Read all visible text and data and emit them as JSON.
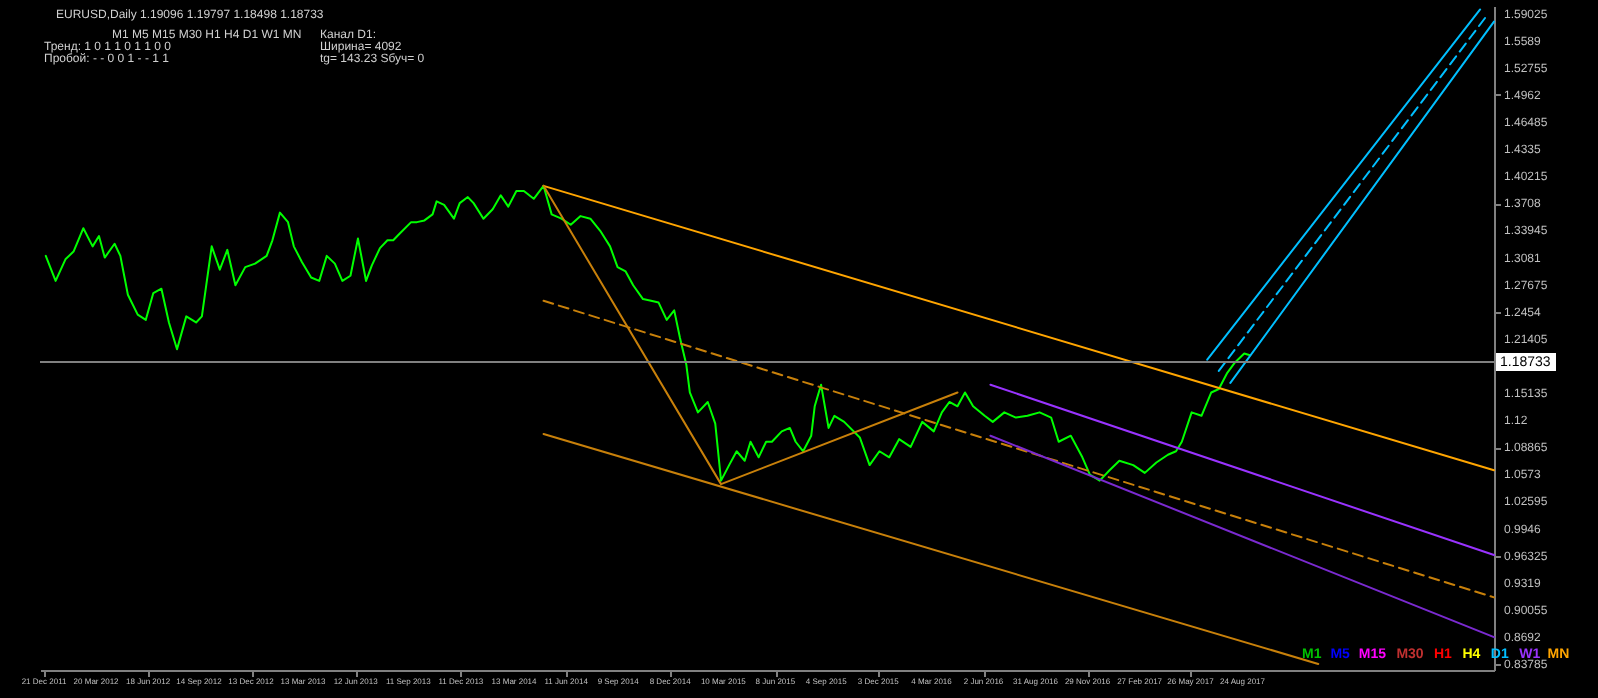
{
  "chart_data": {
    "type": "line",
    "title": "EURUSD,Daily  1.19096 1.19797 1.18498 1.18733",
    "annotations": [
      "M1 M5 M15 M30 H1 H4 D1 W1 MN",
      "Тренд:  1  0  1  1  0  1  1  0  0",
      "Пробой:  -  -  0  0  1  -  -  1  1",
      "Канал D1:",
      "Ширина= 4092",
      "tg= 143.23  Sбуч= 0",
      "M1 M5 M15 M30 H1 H4 D1 W1 MN"
    ],
    "xlim": [
      "2011-12-14",
      "2018-11-02"
    ],
    "ylim": [
      0.831,
      1.599
    ],
    "xticks": [
      {
        "value": "2011-12-21",
        "label": "21 Dec 2011"
      },
      {
        "value": "2012-03-20",
        "label": "20 Mar 2012"
      },
      {
        "value": "2012-06-18",
        "label": "18 Jun 2012"
      },
      {
        "value": "2012-09-14",
        "label": "14 Sep 2012"
      },
      {
        "value": "2012-12-13",
        "label": "13 Dec 2012"
      },
      {
        "value": "2013-03-13",
        "label": "13 Mar 2013"
      },
      {
        "value": "2013-06-12",
        "label": "12 Jun 2013"
      },
      {
        "value": "2013-09-11",
        "label": "11 Sep 2013"
      },
      {
        "value": "2013-12-11",
        "label": "11 Dec 2013"
      },
      {
        "value": "2014-03-13",
        "label": "13 Mar 2014"
      },
      {
        "value": "2014-06-11",
        "label": "11 Jun 2014"
      },
      {
        "value": "2014-09-09",
        "label": "9 Sep 2014"
      },
      {
        "value": "2014-12-08",
        "label": "8 Dec 2014"
      },
      {
        "value": "2015-03-10",
        "label": "10 Mar 2015"
      },
      {
        "value": "2015-06-08",
        "label": "8 Jun 2015"
      },
      {
        "value": "2015-09-04",
        "label": "4 Sep 2015"
      },
      {
        "value": "2015-12-03",
        "label": "3 Dec 2015"
      },
      {
        "value": "2016-03-04",
        "label": "4 Mar 2016"
      },
      {
        "value": "2016-06-02",
        "label": "2 Jun 2016"
      },
      {
        "value": "2016-08-31",
        "label": "31 Aug 2016"
      },
      {
        "value": "2016-11-29",
        "label": "29 Nov 2016"
      },
      {
        "value": "2017-02-27",
        "label": "27 Feb 2017"
      },
      {
        "value": "2017-05-26",
        "label": "26 May 2017"
      },
      {
        "value": "2017-08-24",
        "label": "24 Aug 2017"
      }
    ],
    "yticks": [
      0.83785,
      0.8692,
      0.90055,
      0.9319,
      0.96325,
      0.9946,
      1.02595,
      1.0573,
      1.08865,
      1.12,
      1.15135,
      1.21405,
      1.2454,
      1.27675,
      1.3081,
      1.33945,
      1.3708,
      1.40215,
      1.4335,
      1.46485,
      1.4962,
      1.52755,
      1.5589,
      1.59025
    ],
    "ref_lines": [
      {
        "axis": "y",
        "value": 1.18733,
        "label": "1.18733",
        "color": "#808080"
      }
    ],
    "marker": "none",
    "series": [
      {
        "color": "#00ff00",
        "line_style": "solid",
        "x": [
          "2011-12-24",
          "2012-01-10",
          "2012-01-27",
          "2012-02-10",
          "2012-02-27",
          "2012-03-14",
          "2012-03-25",
          "2012-04-04",
          "2012-04-21",
          "2012-05-01",
          "2012-05-14",
          "2012-05-31",
          "2012-06-14",
          "2012-06-27",
          "2012-07-11",
          "2012-07-24",
          "2012-08-07",
          "2012-08-23",
          "2012-09-09",
          "2012-09-19",
          "2012-10-06",
          "2012-10-20",
          "2012-11-02",
          "2012-11-16",
          "2012-12-03",
          "2012-12-20",
          "2013-01-09",
          "2013-01-19",
          "2013-02-01",
          "2013-02-15",
          "2013-02-25",
          "2013-03-11",
          "2013-03-27",
          "2013-04-10",
          "2013-04-23",
          "2013-05-07",
          "2013-05-20",
          "2013-06-03",
          "2013-06-16",
          "2013-06-30",
          "2013-07-10",
          "2013-07-24",
          "2013-08-06",
          "2013-08-16",
          "2013-08-26",
          "2013-09-16",
          "2013-09-26",
          "2013-10-09",
          "2013-10-23",
          "2013-10-30",
          "2013-11-12",
          "2013-11-29",
          "2013-12-09",
          "2013-12-23",
          "2014-01-02",
          "2014-01-19",
          "2014-02-04",
          "2014-02-18",
          "2014-03-03",
          "2014-03-17",
          "2014-03-30",
          "2014-04-16",
          "2014-05-03",
          "2014-05-17",
          "2014-06-03",
          "2014-06-19",
          "2014-07-06",
          "2014-07-23",
          "2014-08-09",
          "2014-08-26",
          "2014-09-08",
          "2014-09-22",
          "2014-10-05",
          "2014-10-22",
          "2014-11-05",
          "2014-11-18",
          "2014-12-02",
          "2014-12-15",
          "2014-12-25",
          "2015-01-05",
          "2015-01-11",
          "2015-01-25",
          "2015-02-11",
          "2015-02-24",
          "2015-03-06",
          "2015-03-20",
          "2015-04-02",
          "2015-04-16",
          "2015-04-26",
          "2015-05-10",
          "2015-05-23",
          "2015-06-02",
          "2015-06-19",
          "2015-07-03",
          "2015-07-13",
          "2015-07-26",
          "2015-08-09",
          "2015-08-15",
          "2015-08-26",
          "2015-09-08",
          "2015-09-18",
          "2015-10-05",
          "2015-11-01",
          "2015-11-18",
          "2015-12-05",
          "2015-12-22",
          "2016-01-08",
          "2016-01-28",
          "2016-02-17",
          "2016-03-08",
          "2016-03-22",
          "2016-04-04",
          "2016-04-18",
          "2016-05-01",
          "2016-05-15",
          "2016-06-04",
          "2016-06-18",
          "2016-07-08",
          "2016-07-28",
          "2016-08-17",
          "2016-09-07",
          "2016-09-27",
          "2016-10-10",
          "2016-10-31",
          "2016-11-20",
          "2016-12-03",
          "2016-12-20",
          "2017-01-06",
          "2017-01-23",
          "2017-02-16",
          "2017-03-08",
          "2017-03-28",
          "2017-04-17",
          "2017-05-01",
          "2017-05-11",
          "2017-05-28",
          "2017-06-14",
          "2017-07-01",
          "2017-07-14",
          "2017-07-28",
          "2017-08-10",
          "2017-08-27",
          "2017-09-06"
        ],
        "values": [
          1.31,
          1.281,
          1.306,
          1.315,
          1.342,
          1.321,
          1.333,
          1.308,
          1.324,
          1.31,
          1.265,
          1.242,
          1.236,
          1.267,
          1.272,
          1.233,
          1.202,
          1.24,
          1.233,
          1.24,
          1.321,
          1.294,
          1.317,
          1.276,
          1.297,
          1.301,
          1.31,
          1.328,
          1.36,
          1.349,
          1.321,
          1.303,
          1.285,
          1.281,
          1.31,
          1.301,
          1.281,
          1.287,
          1.33,
          1.281,
          1.299,
          1.319,
          1.328,
          1.328,
          1.335,
          1.349,
          1.349,
          1.351,
          1.358,
          1.373,
          1.369,
          1.353,
          1.371,
          1.378,
          1.371,
          1.353,
          1.364,
          1.38,
          1.367,
          1.385,
          1.385,
          1.376,
          1.391,
          1.358,
          1.353,
          1.346,
          1.356,
          1.353,
          1.339,
          1.321,
          1.297,
          1.292,
          1.276,
          1.26,
          1.258,
          1.256,
          1.236,
          1.247,
          1.215,
          1.184,
          1.152,
          1.129,
          1.141,
          1.116,
          1.05,
          1.068,
          1.084,
          1.073,
          1.095,
          1.077,
          1.095,
          1.095,
          1.107,
          1.111,
          1.095,
          1.084,
          1.102,
          1.136,
          1.161,
          1.111,
          1.125,
          1.118,
          1.1,
          1.068,
          1.084,
          1.077,
          1.098,
          1.089,
          1.118,
          1.107,
          1.129,
          1.141,
          1.136,
          1.152,
          1.136,
          1.125,
          1.118,
          1.129,
          1.123,
          1.125,
          1.129,
          1.123,
          1.095,
          1.102,
          1.077,
          1.057,
          1.05,
          1.062,
          1.073,
          1.068,
          1.059,
          1.071,
          1.08,
          1.084,
          1.095,
          1.129,
          1.125,
          1.152,
          1.156,
          1.174,
          1.186,
          1.197,
          1.195
        ]
      },
      {
        "color": "#ffa500",
        "line_style": "solid",
        "x": [
          "2014-05-03",
          "2018-11-02"
        ],
        "values": [
          1.391,
          1.062
        ]
      },
      {
        "color": "#c8800a",
        "line_style": "solid",
        "x": [
          "2014-05-03",
          "2018-01-02"
        ],
        "values": [
          1.104,
          0.838
        ]
      },
      {
        "color": "#c8800a",
        "line_style": "solid",
        "x": [
          "2014-05-03",
          "2015-03-06",
          "2016-04-18"
        ],
        "values": [
          1.391,
          1.046,
          1.152
        ]
      },
      {
        "color": "#c8800a",
        "line_style": "dashed",
        "x": [
          "2014-05-03",
          "2018-11-02"
        ],
        "values": [
          1.258,
          0.915
        ]
      },
      {
        "color": "#9933ff",
        "line_style": "solid",
        "x": [
          "2016-06-14",
          "2018-11-02"
        ],
        "values": [
          1.161,
          0.964
        ]
      },
      {
        "color": "#7a2ad0",
        "line_style": "solid",
        "x": [
          "2016-06-14",
          "2018-11-02"
        ],
        "values": [
          1.102,
          0.869
        ]
      },
      {
        "color": "#00bfff",
        "line_style": "solid",
        "x": [
          "2017-06-24",
          "2018-10-09"
        ],
        "values": [
          1.19,
          1.595
        ]
      },
      {
        "color": "#00bfff",
        "line_style": "dashed",
        "x": [
          "2017-07-14",
          "2018-10-23"
        ],
        "values": [
          1.177,
          1.59
        ]
      },
      {
        "color": "#00bfff",
        "line_style": "solid",
        "x": [
          "2017-08-03",
          "2018-11-02"
        ],
        "values": [
          1.163,
          1.581
        ]
      }
    ]
  }
}
